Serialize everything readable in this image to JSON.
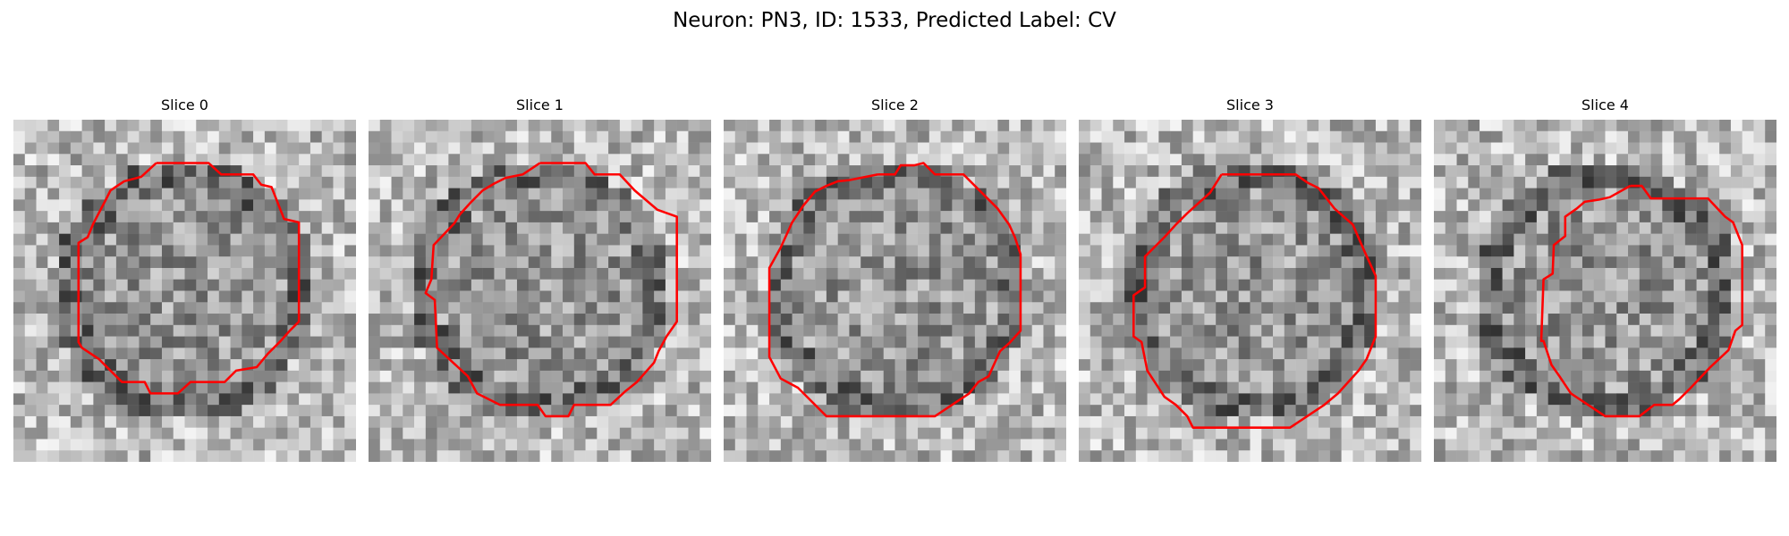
{
  "figure": {
    "title": "Neuron: PN3, ID: 1533, Predicted Label: CV"
  },
  "outline_color": "#ff0000",
  "colormap": "gray",
  "slices": [
    {
      "title": "Slice 0"
    },
    {
      "title": "Slice 1"
    },
    {
      "title": "Slice 2"
    },
    {
      "title": "Slice 3"
    },
    {
      "title": "Slice 4"
    }
  ]
}
